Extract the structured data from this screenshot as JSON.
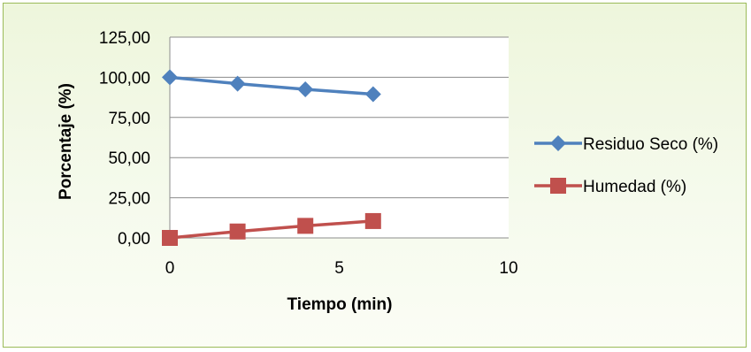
{
  "chart_data": {
    "type": "scatter",
    "title": "",
    "xlabel": "Tiempo (min)",
    "ylabel": "Porcentaje (%)",
    "xlim": [
      0,
      10
    ],
    "ylim": [
      0,
      125
    ],
    "x_ticks": [
      0,
      5,
      10
    ],
    "x_tick_labels": [
      "0",
      "5",
      "10"
    ],
    "y_ticks": [
      0,
      25,
      50,
      75,
      100,
      125
    ],
    "y_tick_labels": [
      "0,00",
      "25,00",
      "50,00",
      "75,00",
      "100,00",
      "125,00"
    ],
    "grid": "horizontal",
    "legend_position": "right",
    "series": [
      {
        "name": "Residuo Seco (%)",
        "color": "#4f81bd",
        "marker": "diamond",
        "x": [
          0,
          2,
          4,
          6
        ],
        "y": [
          100.0,
          96.0,
          92.5,
          89.5
        ]
      },
      {
        "name": "Humedad (%)",
        "color": "#c0504d",
        "marker": "square",
        "x": [
          0,
          2,
          4,
          6
        ],
        "y": [
          0.0,
          4.0,
          7.5,
          10.5
        ]
      }
    ]
  }
}
